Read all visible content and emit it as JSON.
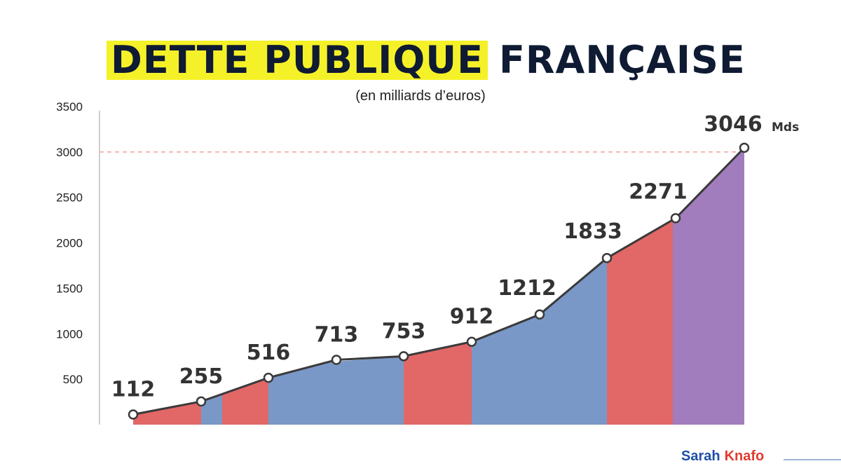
{
  "title": {
    "highlight": "DETTE PUBLIQUE",
    "rest": "FRANÇAISE"
  },
  "subtitle": "(en milliards d’euros)",
  "brand": {
    "first": "Sarah",
    "last": "Knafo"
  },
  "colors": {
    "red": "#e05a5a",
    "blue": "#6f8fc2",
    "purple": "#9a72b8",
    "highlight": "#f5f128",
    "dark": "#0f1a33"
  },
  "chart_data": {
    "type": "area",
    "y_ticks": [
      "500",
      "1000",
      "1500",
      "2000",
      "2500",
      "3000",
      "3500"
    ],
    "ylim": [
      0,
      3500
    ],
    "reference_line": 3000,
    "points": [
      {
        "value": 112,
        "label": "112"
      },
      {
        "value": 255,
        "label": "255"
      },
      {
        "value": 516,
        "label": "516"
      },
      {
        "value": 713,
        "label": "713"
      },
      {
        "value": 753,
        "label": "753"
      },
      {
        "value": 912,
        "label": "912"
      },
      {
        "value": 1212,
        "label": "1212"
      },
      {
        "value": 1833,
        "label": "1833"
      },
      {
        "value": 2271,
        "label": "2271"
      },
      {
        "value": 3046,
        "label": "3046",
        "unit": "Mds"
      }
    ],
    "bands": [
      {
        "color": "red"
      },
      {
        "color": "blue"
      },
      {
        "color": "red"
      },
      {
        "color": "blue"
      },
      {
        "color": "blue"
      },
      {
        "color": "red"
      },
      {
        "color": "blue"
      },
      {
        "color": "blue"
      },
      {
        "color": "red"
      },
      {
        "color": "purple"
      }
    ]
  }
}
